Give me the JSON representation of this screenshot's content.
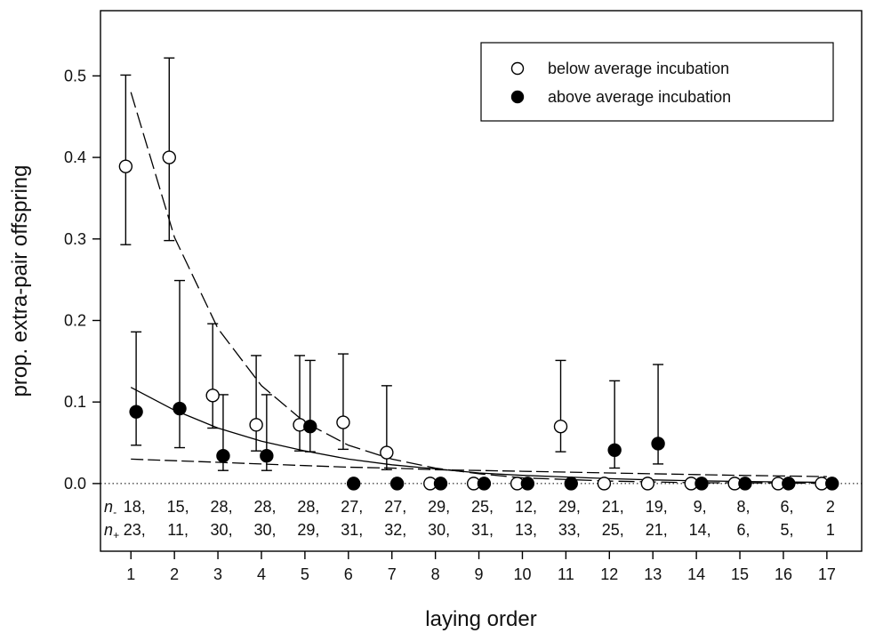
{
  "chart_data": {
    "type": "scatter",
    "xlabel": "laying order",
    "ylabel": "prop. extra-pair offspring",
    "xlim": [
      0.3,
      17.8
    ],
    "ylim": [
      -0.083,
      0.58
    ],
    "x_ticks": [
      1,
      2,
      3,
      4,
      5,
      6,
      7,
      8,
      9,
      10,
      11,
      12,
      13,
      14,
      15,
      16,
      17
    ],
    "y_ticks": [
      0.0,
      0.1,
      0.2,
      0.3,
      0.4,
      0.5
    ],
    "y_tick_labels": [
      "0.0",
      "0.1",
      "0.2",
      "0.3",
      "0.4",
      "0.5"
    ],
    "reference_line": {
      "y": 0.0,
      "style": "dotted"
    },
    "legend": {
      "position": "top-right",
      "entries": [
        "below average incubation",
        "above average incubation"
      ]
    },
    "series": [
      {
        "name": "below average incubation",
        "marker": "open-circle",
        "x": [
          1,
          2,
          3,
          4,
          5,
          6,
          7,
          8,
          9,
          10,
          11,
          12,
          13,
          14,
          15,
          16,
          17
        ],
        "y": [
          0.389,
          0.4,
          0.108,
          0.072,
          0.072,
          0.075,
          0.038,
          0.0,
          0.0,
          0.0,
          0.07,
          0.0,
          0.0,
          0.0,
          0.0,
          0.0,
          0.0
        ],
        "err_low": [
          0.293,
          0.298,
          0.068,
          0.04,
          0.04,
          0.042,
          0.017,
          null,
          null,
          null,
          0.039,
          null,
          null,
          null,
          null,
          null,
          null
        ],
        "err_high": [
          0.501,
          0.522,
          0.196,
          0.157,
          0.157,
          0.159,
          0.12,
          null,
          null,
          null,
          0.151,
          null,
          null,
          null,
          null,
          null,
          null
        ]
      },
      {
        "name": "above average incubation",
        "marker": "filled-circle",
        "x": [
          1,
          2,
          3,
          4,
          5,
          6,
          7,
          8,
          9,
          10,
          11,
          12,
          13,
          14,
          15,
          16,
          17
        ],
        "y": [
          0.088,
          0.092,
          0.034,
          0.034,
          0.07,
          0.0,
          0.0,
          0.0,
          0.0,
          0.0,
          0.0,
          0.041,
          0.049,
          0.0,
          0.0,
          0.0,
          0.0
        ],
        "err_low": [
          0.047,
          0.044,
          0.016,
          0.016,
          0.039,
          null,
          null,
          null,
          null,
          null,
          null,
          0.019,
          0.024,
          null,
          null,
          null,
          null
        ],
        "err_high": [
          0.186,
          0.249,
          0.109,
          0.109,
          0.151,
          null,
          null,
          null,
          null,
          null,
          null,
          0.126,
          0.146,
          null,
          null,
          null,
          null
        ]
      }
    ],
    "fitted_curves": [
      {
        "style": "long-dash",
        "x": [
          1,
          2,
          3,
          4,
          5,
          6,
          7,
          8,
          9,
          10,
          11,
          12,
          13,
          14,
          15,
          16,
          17
        ],
        "y": [
          0.48,
          0.302,
          0.19,
          0.12,
          0.075,
          0.047,
          0.03,
          0.019,
          0.012,
          0.007,
          0.005,
          0.003,
          0.002,
          0.001,
          0.001,
          0.0005,
          0.0003
        ]
      },
      {
        "style": "solid",
        "x": [
          1,
          2,
          3,
          4,
          5,
          6,
          7,
          8,
          9,
          10,
          11,
          12,
          13,
          14,
          15,
          16,
          17
        ],
        "y": [
          0.118,
          0.09,
          0.068,
          0.052,
          0.04,
          0.03,
          0.023,
          0.018,
          0.013,
          0.01,
          0.008,
          0.006,
          0.0045,
          0.0034,
          0.0026,
          0.002,
          0.0015
        ]
      },
      {
        "style": "dashed",
        "x": [
          1,
          2,
          3,
          4,
          5,
          6,
          7,
          8,
          9,
          10,
          11,
          12,
          13,
          14,
          15,
          16,
          17
        ],
        "y": [
          0.03,
          0.028,
          0.026,
          0.024,
          0.022,
          0.02,
          0.019,
          0.017,
          0.016,
          0.015,
          0.014,
          0.013,
          0.012,
          0.011,
          0.01,
          0.0092,
          0.0085
        ]
      }
    ],
    "sample_sizes": {
      "n_minus_label": "n-",
      "n_plus_label": "n+",
      "n_minus": [
        "18,",
        "15,",
        "28,",
        "28,",
        "28,",
        "27,",
        "27,",
        "29,",
        "25,",
        "12,",
        "29,",
        "21,",
        "19,",
        "9,",
        "8,",
        "6,",
        "2"
      ],
      "n_plus": [
        "23,",
        "11,",
        "30,",
        "30,",
        "29,",
        "31,",
        "32,",
        "30,",
        "31,",
        "13,",
        "33,",
        "25,",
        "21,",
        "14,",
        "6,",
        "5,",
        "1"
      ]
    }
  }
}
